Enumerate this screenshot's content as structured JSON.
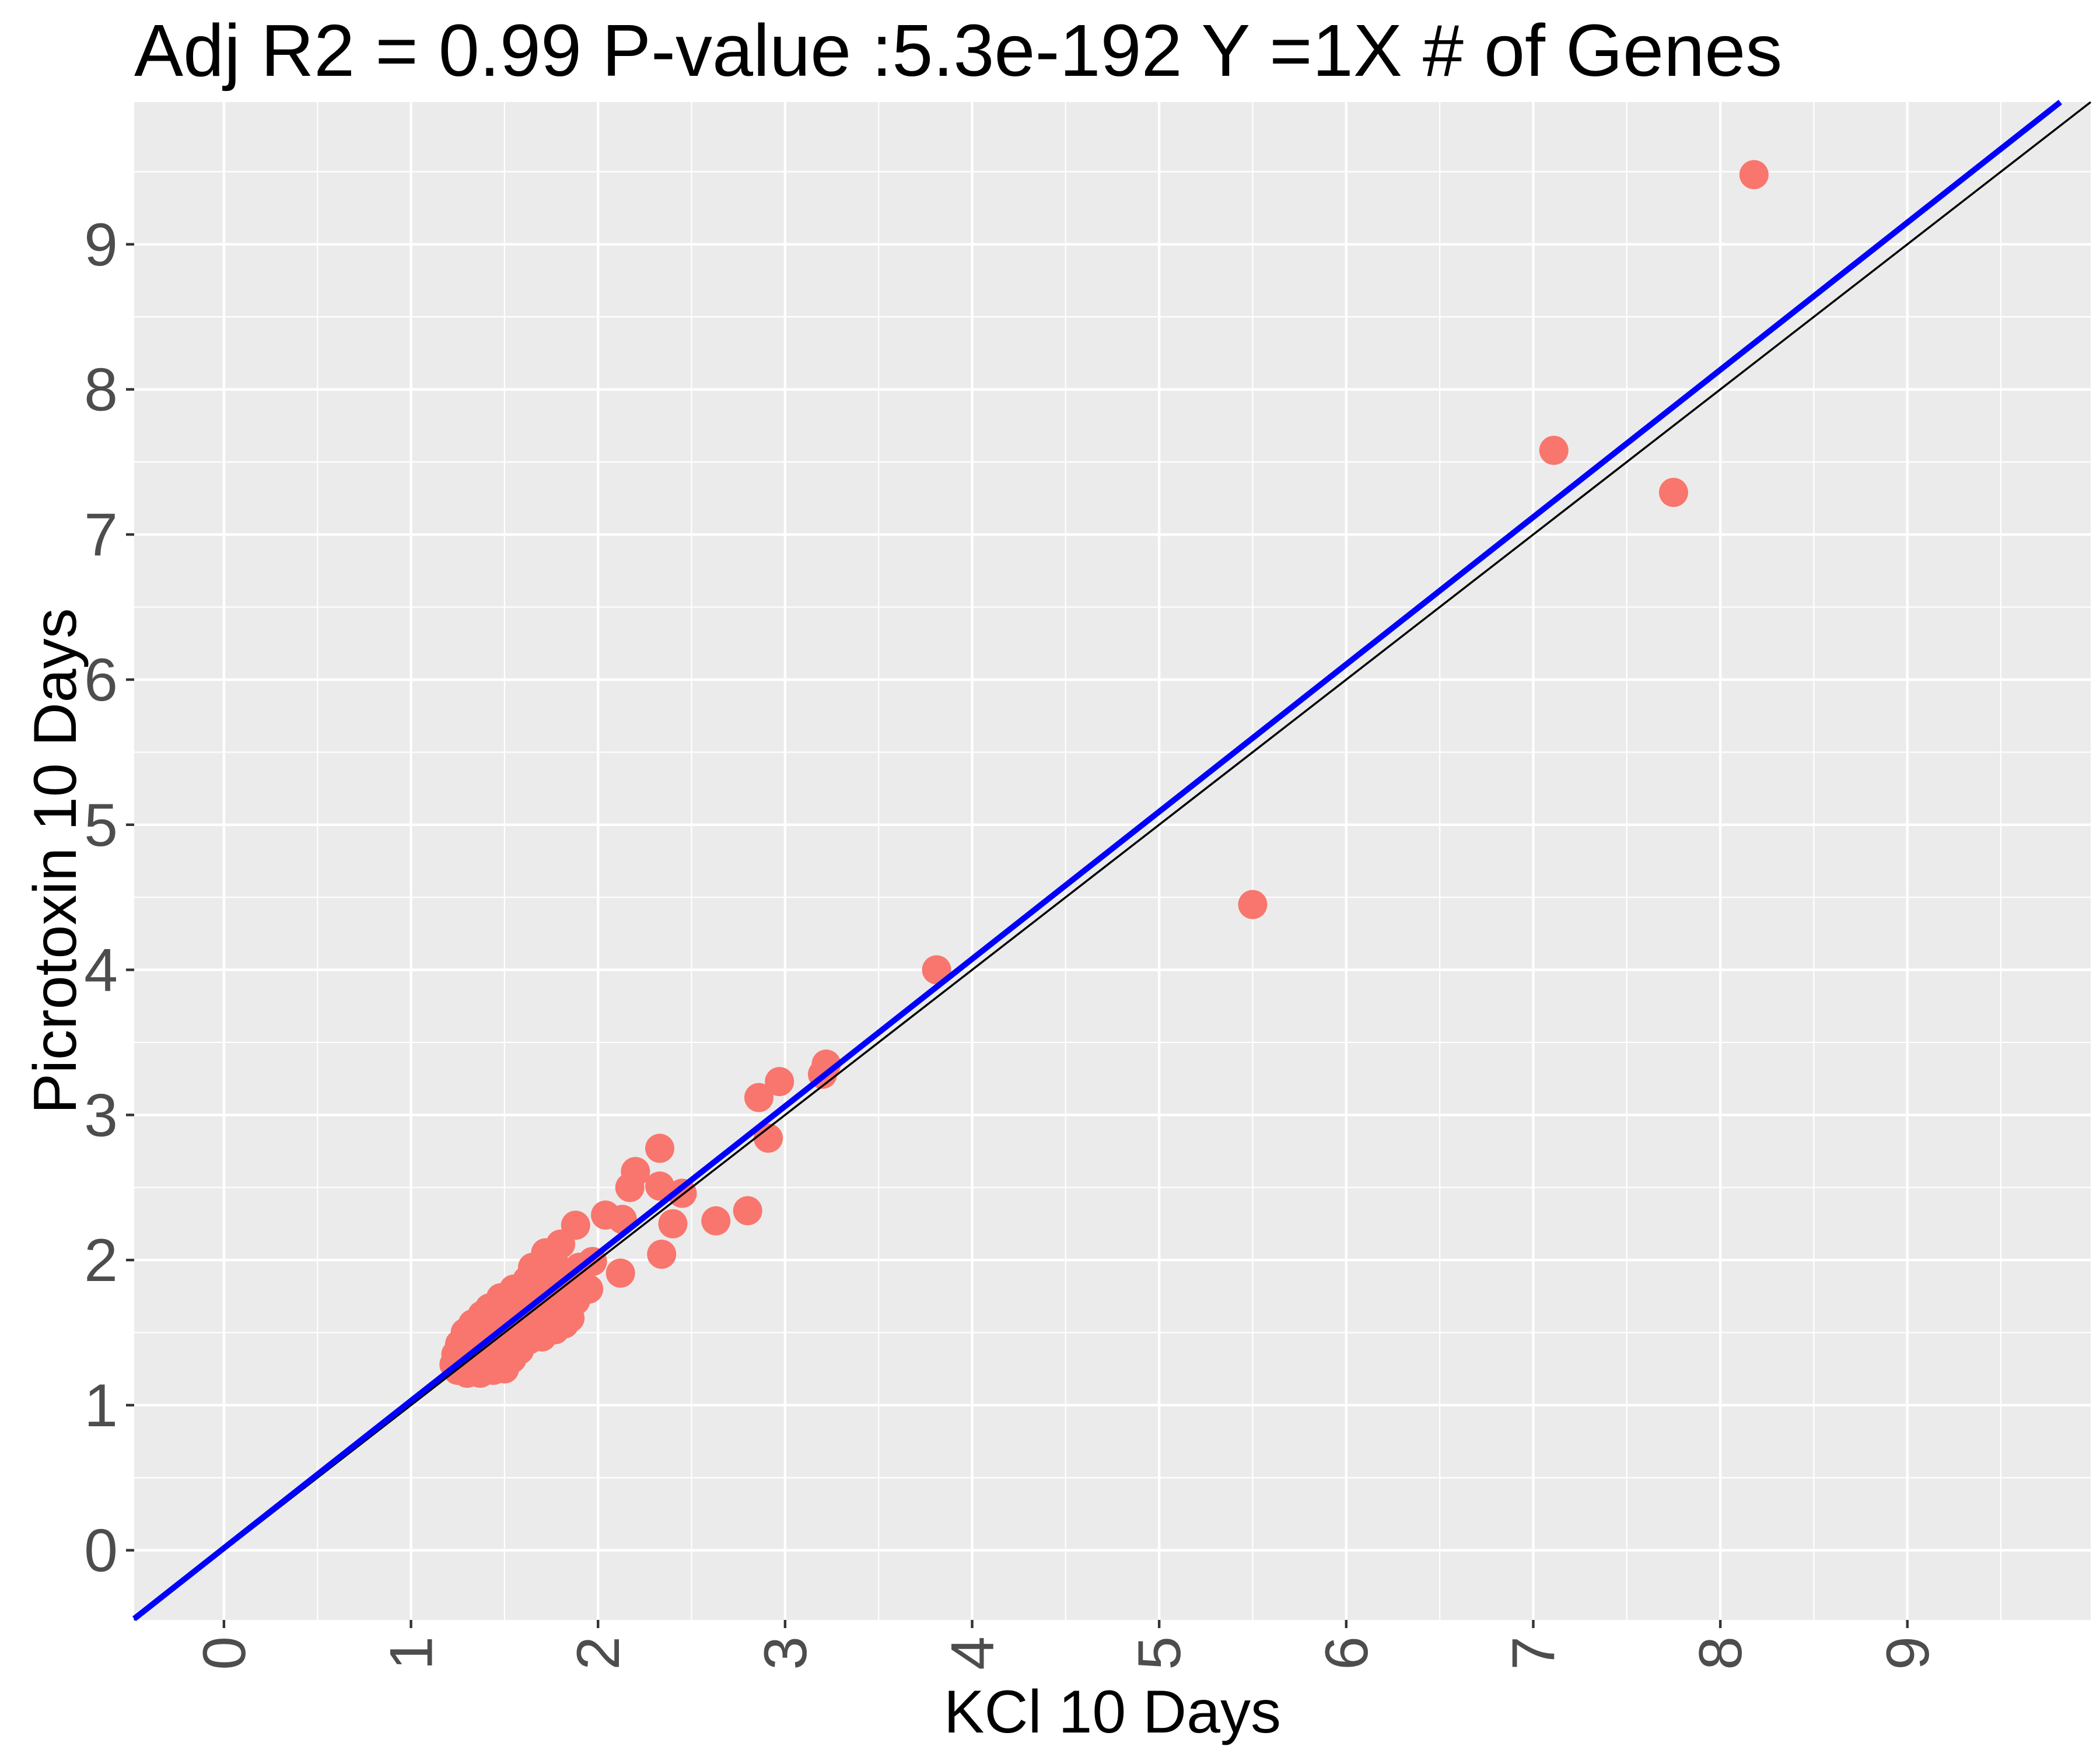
{
  "chart_data": {
    "type": "scatter",
    "title": "Adj R2 = 0.99 P-value :5.3e-192 Y =1X # of Genes",
    "xlabel": "KCl 10 Days",
    "ylabel": "Picrotoxin 10 Days",
    "xlim": [
      -0.48,
      9.98
    ],
    "ylim": [
      -0.48,
      9.98
    ],
    "x_ticks": [
      0,
      1,
      2,
      3,
      4,
      5,
      6,
      7,
      8,
      9
    ],
    "y_ticks": [
      0,
      1,
      2,
      3,
      4,
      5,
      6,
      7,
      8,
      9
    ],
    "x_tick_labels": [
      "0",
      "1",
      "2",
      "3",
      "4",
      "5",
      "6",
      "7",
      "8",
      "9"
    ],
    "y_tick_labels": [
      "0",
      "1",
      "2",
      "3",
      "4",
      "5",
      "6",
      "7",
      "8",
      "9"
    ],
    "grid": true,
    "colors": {
      "panel": "#ebebeb",
      "grid": "#ffffff",
      "points": "#f8766d",
      "fit_line": "#0000ff",
      "identity_line": "#000000",
      "tick_text": "#4d4d4d"
    },
    "reference_lines": [
      {
        "kind": "fit",
        "intercept": 0.015,
        "slope": 1.015
      },
      {
        "kind": "identity",
        "intercept": 0,
        "slope": 1
      }
    ],
    "points": [
      {
        "x": 8.18,
        "y": 9.48
      },
      {
        "x": 7.11,
        "y": 7.58
      },
      {
        "x": 7.75,
        "y": 7.29
      },
      {
        "x": 5.5,
        "y": 4.45
      },
      {
        "x": 3.81,
        "y": 4.0
      },
      {
        "x": 3.22,
        "y": 3.35
      },
      {
        "x": 3.2,
        "y": 3.28
      },
      {
        "x": 2.97,
        "y": 3.23
      },
      {
        "x": 2.86,
        "y": 3.12
      },
      {
        "x": 2.91,
        "y": 2.84
      },
      {
        "x": 2.33,
        "y": 2.77
      },
      {
        "x": 2.2,
        "y": 2.61
      },
      {
        "x": 2.17,
        "y": 2.5
      },
      {
        "x": 2.33,
        "y": 2.51
      },
      {
        "x": 2.45,
        "y": 2.46
      },
      {
        "x": 2.8,
        "y": 2.34
      },
      {
        "x": 2.63,
        "y": 2.27
      },
      {
        "x": 2.4,
        "y": 2.25
      },
      {
        "x": 2.04,
        "y": 2.31
      },
      {
        "x": 2.13,
        "y": 2.28
      },
      {
        "x": 1.88,
        "y": 2.24
      },
      {
        "x": 2.34,
        "y": 2.04
      },
      {
        "x": 2.12,
        "y": 1.91
      },
      {
        "x": 1.97,
        "y": 1.99
      },
      {
        "x": 1.95,
        "y": 1.8
      },
      {
        "x": 1.8,
        "y": 2.11
      },
      {
        "x": 1.72,
        "y": 2.05
      },
      {
        "x": 1.9,
        "y": 1.95
      },
      {
        "x": 1.85,
        "y": 1.9
      },
      {
        "x": 1.65,
        "y": 1.95
      },
      {
        "x": 1.62,
        "y": 1.86
      },
      {
        "x": 1.55,
        "y": 1.8
      },
      {
        "x": 1.48,
        "y": 1.74
      },
      {
        "x": 1.42,
        "y": 1.67
      },
      {
        "x": 1.38,
        "y": 1.62
      },
      {
        "x": 1.33,
        "y": 1.56
      },
      {
        "x": 1.29,
        "y": 1.5
      },
      {
        "x": 1.26,
        "y": 1.42
      },
      {
        "x": 1.24,
        "y": 1.35
      },
      {
        "x": 1.23,
        "y": 1.28
      },
      {
        "x": 1.25,
        "y": 1.24
      },
      {
        "x": 1.3,
        "y": 1.22
      },
      {
        "x": 1.37,
        "y": 1.22
      },
      {
        "x": 1.44,
        "y": 1.24
      },
      {
        "x": 1.5,
        "y": 1.25
      },
      {
        "x": 1.58,
        "y": 1.38
      },
      {
        "x": 1.63,
        "y": 1.45
      },
      {
        "x": 1.7,
        "y": 1.47
      },
      {
        "x": 1.77,
        "y": 1.52
      },
      {
        "x": 1.82,
        "y": 1.56
      },
      {
        "x": 1.85,
        "y": 1.6
      },
      {
        "x": 1.8,
        "y": 1.7
      },
      {
        "x": 1.72,
        "y": 1.76
      },
      {
        "x": 1.75,
        "y": 1.62
      },
      {
        "x": 1.68,
        "y": 1.68
      },
      {
        "x": 1.6,
        "y": 1.62
      },
      {
        "x": 1.55,
        "y": 1.55
      },
      {
        "x": 1.5,
        "y": 1.48
      },
      {
        "x": 1.45,
        "y": 1.42
      },
      {
        "x": 1.4,
        "y": 1.36
      },
      {
        "x": 1.35,
        "y": 1.3
      },
      {
        "x": 1.3,
        "y": 1.3
      },
      {
        "x": 1.32,
        "y": 1.4
      },
      {
        "x": 1.36,
        "y": 1.48
      },
      {
        "x": 1.41,
        "y": 1.55
      },
      {
        "x": 1.46,
        "y": 1.62
      },
      {
        "x": 1.52,
        "y": 1.68
      },
      {
        "x": 1.57,
        "y": 1.73
      },
      {
        "x": 1.6,
        "y": 1.78
      },
      {
        "x": 1.67,
        "y": 1.83
      },
      {
        "x": 1.7,
        "y": 1.9
      },
      {
        "x": 1.75,
        "y": 1.85
      },
      {
        "x": 1.78,
        "y": 1.95
      },
      {
        "x": 1.62,
        "y": 1.55
      },
      {
        "x": 1.66,
        "y": 1.58
      },
      {
        "x": 1.72,
        "y": 1.55
      },
      {
        "x": 1.54,
        "y": 1.32
      },
      {
        "x": 1.48,
        "y": 1.34
      },
      {
        "x": 1.42,
        "y": 1.3
      },
      {
        "x": 1.38,
        "y": 1.26
      },
      {
        "x": 1.45,
        "y": 1.5
      },
      {
        "x": 1.52,
        "y": 1.45
      },
      {
        "x": 1.58,
        "y": 1.5
      },
      {
        "x": 1.64,
        "y": 1.66
      },
      {
        "x": 1.74,
        "y": 1.7
      },
      {
        "x": 1.82,
        "y": 1.75
      },
      {
        "x": 1.88,
        "y": 1.72
      },
      {
        "x": 1.92,
        "y": 1.82
      },
      {
        "x": 1.27,
        "y": 1.32
      },
      {
        "x": 1.28,
        "y": 1.25
      },
      {
        "x": 1.34,
        "y": 1.36
      },
      {
        "x": 1.4,
        "y": 1.44
      },
      {
        "x": 1.44,
        "y": 1.58
      },
      {
        "x": 1.5,
        "y": 1.62
      },
      {
        "x": 1.56,
        "y": 1.66
      },
      {
        "x": 1.53,
        "y": 1.72
      },
      {
        "x": 1.47,
        "y": 1.67
      },
      {
        "x": 1.39,
        "y": 1.5
      },
      {
        "x": 1.61,
        "y": 1.48
      },
      {
        "x": 1.67,
        "y": 1.5
      },
      {
        "x": 1.78,
        "y": 1.58
      },
      {
        "x": 1.84,
        "y": 1.65
      },
      {
        "x": 1.7,
        "y": 1.62
      },
      {
        "x": 1.57,
        "y": 1.42
      },
      {
        "x": 1.52,
        "y": 1.38
      },
      {
        "x": 1.46,
        "y": 1.36
      },
      {
        "x": 1.35,
        "y": 1.24
      },
      {
        "x": 1.76,
        "y": 1.8
      },
      {
        "x": 1.83,
        "y": 1.84
      }
    ]
  }
}
